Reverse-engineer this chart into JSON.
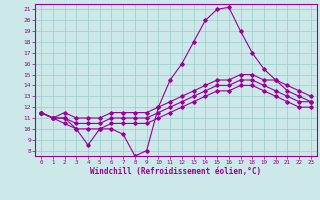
{
  "bg_color": "#cce8e8",
  "line_color": "#990099",
  "marker": "D",
  "markersize": 1.8,
  "linewidth": 0.8,
  "xlabel": "Windchill (Refroidissement éolien,°C)",
  "xlim": [
    -0.5,
    23.5
  ],
  "ylim": [
    7.5,
    21.5
  ],
  "yticks": [
    8,
    9,
    10,
    11,
    12,
    13,
    14,
    15,
    16,
    17,
    18,
    19,
    20,
    21
  ],
  "xticks": [
    0,
    1,
    2,
    3,
    4,
    5,
    6,
    7,
    8,
    9,
    10,
    11,
    12,
    13,
    14,
    15,
    16,
    17,
    18,
    19,
    20,
    21,
    22,
    23
  ],
  "grid_color": "#99cccc",
  "series": [
    [
      11.5,
      11.0,
      11.0,
      10.0,
      8.5,
      10.0,
      10.0,
      9.5,
      7.5,
      8.0,
      12.0,
      14.5,
      16.0,
      18.0,
      20.0,
      21.0,
      21.2,
      19.0,
      17.0,
      15.5,
      14.5,
      13.5,
      13.0,
      12.5
    ],
    [
      11.5,
      11.0,
      11.5,
      11.0,
      11.0,
      11.0,
      11.5,
      11.5,
      11.5,
      11.5,
      12.0,
      12.5,
      13.0,
      13.5,
      14.0,
      14.5,
      14.5,
      15.0,
      15.0,
      14.5,
      14.5,
      14.0,
      13.5,
      13.0
    ],
    [
      11.5,
      11.0,
      11.0,
      10.5,
      10.5,
      10.5,
      11.0,
      11.0,
      11.0,
      11.0,
      11.5,
      12.0,
      12.5,
      13.0,
      13.5,
      14.0,
      14.0,
      14.5,
      14.5,
      14.0,
      13.5,
      13.0,
      12.5,
      12.5
    ],
    [
      11.5,
      11.0,
      10.5,
      10.0,
      10.0,
      10.0,
      10.5,
      10.5,
      10.5,
      10.5,
      11.0,
      11.5,
      12.0,
      12.5,
      13.0,
      13.5,
      13.5,
      14.0,
      14.0,
      13.5,
      13.0,
      12.5,
      12.0,
      12.0
    ]
  ]
}
